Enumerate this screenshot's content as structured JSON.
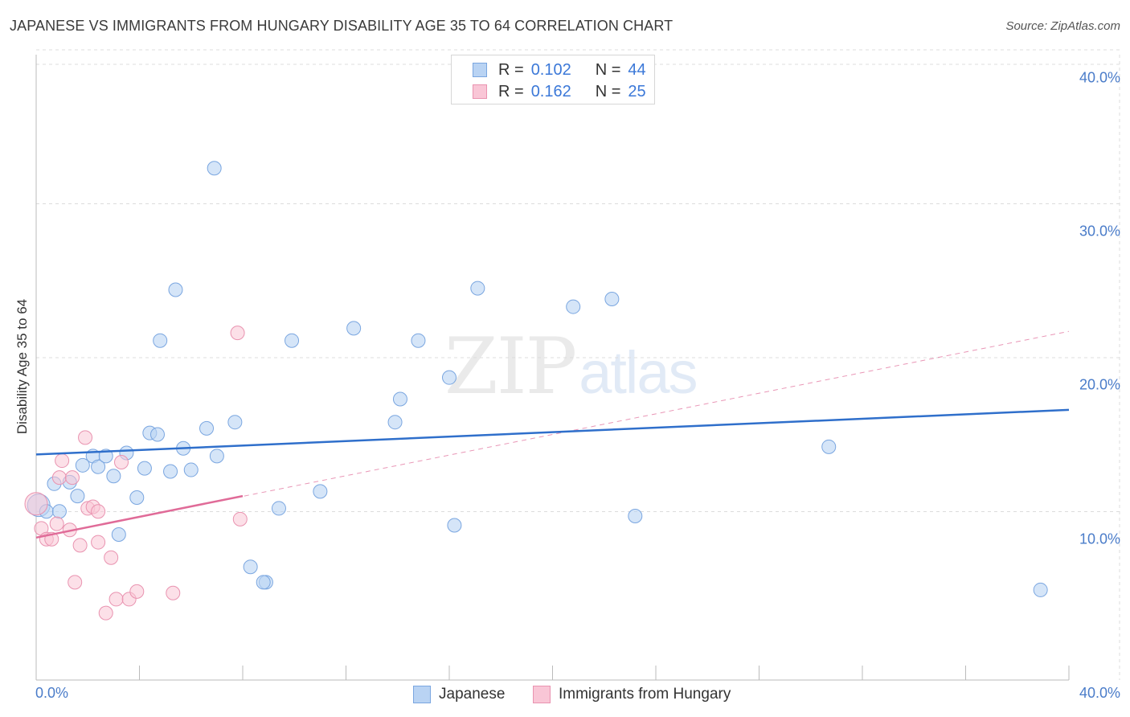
{
  "title": "JAPANESE VS IMMIGRANTS FROM HUNGARY DISABILITY AGE 35 TO 64 CORRELATION CHART",
  "source": "Source: ZipAtlas.com",
  "watermark": {
    "zip": "ZIP",
    "atlas": "atlas"
  },
  "colors": {
    "japanese_fill": "#b9d3f3",
    "japanese_stroke": "#7aa6e0",
    "japanese_line": "#2f6fcb",
    "hungary_fill": "#f9c6d6",
    "hungary_stroke": "#e993b0",
    "hungary_line": "#e06b98",
    "tick_text": "#4a7cc9",
    "grid": "#dcdcdc"
  },
  "legend": {
    "rows": [
      {
        "r_label": "R =",
        "r_value": "0.102",
        "n_label": "N =",
        "n_value": "44"
      },
      {
        "r_label": "R =",
        "r_value": "0.162",
        "n_label": "N =",
        "n_value": "25"
      }
    ]
  },
  "bottom_legend": {
    "japanese": "Japanese",
    "hungary": "Immigrants from Hungary"
  },
  "chart_data": {
    "type": "scatter",
    "title": "JAPANESE VS IMMIGRANTS FROM HUNGARY DISABILITY AGE 35 TO 64 CORRELATION CHART",
    "xlabel": "",
    "ylabel": "Disability Age 35 to 64",
    "xlim": [
      0,
      40
    ],
    "ylim": [
      0,
      40
    ],
    "x_tick_labels": [
      "0.0%",
      "40.0%"
    ],
    "y_tick_values": [
      10,
      20,
      30,
      40
    ],
    "y_tick_labels": [
      "10.0%",
      "20.0%",
      "30.0%",
      "40.0%"
    ],
    "grid": true,
    "legend_position": "top-center",
    "series": [
      {
        "name": "Japanese",
        "R": 0.102,
        "N": 44,
        "trend": {
          "x": [
            0,
            40
          ],
          "y": [
            14.6,
            17.5
          ]
        },
        "points": [
          [
            0.1,
            11.3
          ],
          [
            0.4,
            10.9
          ],
          [
            0.7,
            12.7
          ],
          [
            0.9,
            10.9
          ],
          [
            1.3,
            12.8
          ],
          [
            1.6,
            11.9
          ],
          [
            1.8,
            13.9
          ],
          [
            2.2,
            14.5
          ],
          [
            2.4,
            13.8
          ],
          [
            2.7,
            14.5
          ],
          [
            3.0,
            13.2
          ],
          [
            3.2,
            9.4
          ],
          [
            3.5,
            14.7
          ],
          [
            3.9,
            11.8
          ],
          [
            4.2,
            13.7
          ],
          [
            4.4,
            16.0
          ],
          [
            4.7,
            15.9
          ],
          [
            4.8,
            22.0
          ],
          [
            5.2,
            13.5
          ],
          [
            5.4,
            25.3
          ],
          [
            5.7,
            15.0
          ],
          [
            6.0,
            13.6
          ],
          [
            6.6,
            16.3
          ],
          [
            6.9,
            33.2
          ],
          [
            7.0,
            14.5
          ],
          [
            7.7,
            16.7
          ],
          [
            8.3,
            7.3
          ],
          [
            8.9,
            6.3
          ],
          [
            8.8,
            6.3
          ],
          [
            9.4,
            11.1
          ],
          [
            9.9,
            22.0
          ],
          [
            11.0,
            12.2
          ],
          [
            12.3,
            22.8
          ],
          [
            13.9,
            16.7
          ],
          [
            14.1,
            18.2
          ],
          [
            14.8,
            22.0
          ],
          [
            16.0,
            19.6
          ],
          [
            16.2,
            10.0
          ],
          [
            17.1,
            25.4
          ],
          [
            20.8,
            24.2
          ],
          [
            22.3,
            24.7
          ],
          [
            23.2,
            10.6
          ],
          [
            30.7,
            15.1
          ],
          [
            38.9,
            5.8
          ]
        ]
      },
      {
        "name": "Immigrants from Hungary",
        "R": 0.162,
        "N": 25,
        "trend": {
          "x": [
            0,
            8
          ],
          "y": [
            9.2,
            11.9
          ]
        },
        "trend_extended": {
          "x": [
            0,
            40
          ],
          "y": [
            9.2,
            22.6
          ]
        },
        "points": [
          [
            0.2,
            9.8
          ],
          [
            0.4,
            9.1
          ],
          [
            0.6,
            9.1
          ],
          [
            0.8,
            10.1
          ],
          [
            0.9,
            13.1
          ],
          [
            1.0,
            14.2
          ],
          [
            1.3,
            9.7
          ],
          [
            1.4,
            13.1
          ],
          [
            1.5,
            6.3
          ],
          [
            1.7,
            8.7
          ],
          [
            1.9,
            15.7
          ],
          [
            2.0,
            11.1
          ],
          [
            2.2,
            11.2
          ],
          [
            2.4,
            10.9
          ],
          [
            2.4,
            8.9
          ],
          [
            2.7,
            4.3
          ],
          [
            2.9,
            7.9
          ],
          [
            3.1,
            5.2
          ],
          [
            3.3,
            14.1
          ],
          [
            3.6,
            5.2
          ],
          [
            3.9,
            5.7
          ],
          [
            5.3,
            5.6
          ],
          [
            7.9,
            10.4
          ],
          [
            7.8,
            22.5
          ],
          [
            0.0,
            11.4
          ]
        ]
      }
    ]
  }
}
